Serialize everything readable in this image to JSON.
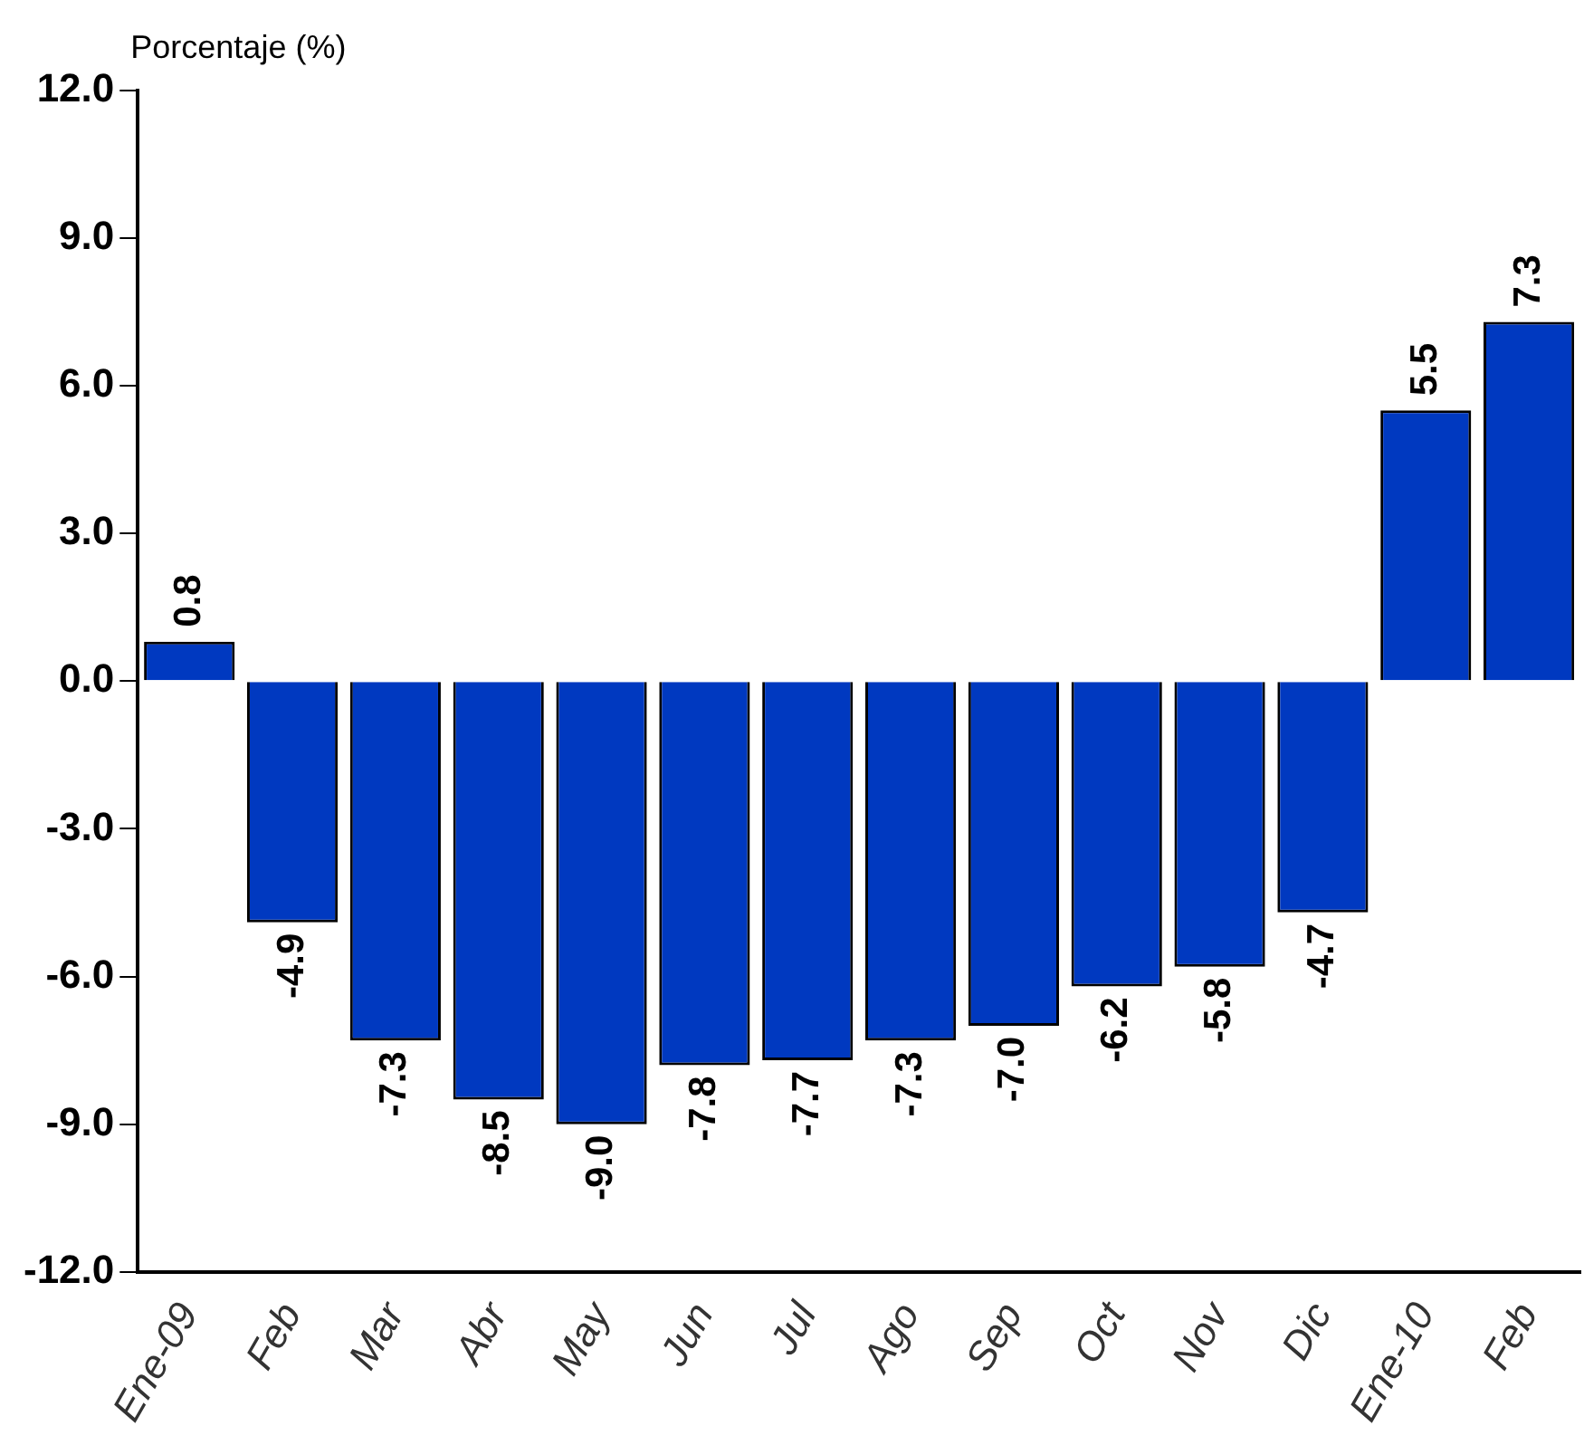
{
  "chart_data": {
    "type": "bar",
    "ylabel": "Porcentaje (%)",
    "categories": [
      "Ene-09",
      "Feb",
      "Mar",
      "Abr",
      "May",
      "Jun",
      "Jul",
      "Ago",
      "Sep",
      "Oct",
      "Nov",
      "Dic",
      "Ene-10",
      "Feb"
    ],
    "values": [
      0.8,
      -4.9,
      -7.3,
      -8.5,
      -9.0,
      -7.8,
      -7.7,
      -7.3,
      -7.0,
      -6.2,
      -5.8,
      -4.7,
      5.5,
      7.3
    ],
    "value_labels": [
      "0.8",
      "-4.9",
      "-7.3",
      "-8.5",
      "-9.0",
      "-7.8",
      "-7.7",
      "-7.3",
      "-7.0",
      "-6.2",
      "-5.8",
      "-4.7",
      "5.5",
      "7.3"
    ],
    "color": "#0039c0",
    "ylim": [
      -12,
      12
    ],
    "yticks": [
      {
        "value": -12,
        "label": "-12.0"
      },
      {
        "value": -9,
        "label": "-9.0"
      },
      {
        "value": -6,
        "label": "-6.0"
      },
      {
        "value": -3,
        "label": "-3.0"
      },
      {
        "value": 0,
        "label": "0.0"
      },
      {
        "value": 3,
        "label": "3.0"
      },
      {
        "value": 6,
        "label": "6.0"
      },
      {
        "value": 9,
        "label": "9.0"
      },
      {
        "value": 12,
        "label": "12.0"
      }
    ],
    "grid": false,
    "legend": false
  }
}
